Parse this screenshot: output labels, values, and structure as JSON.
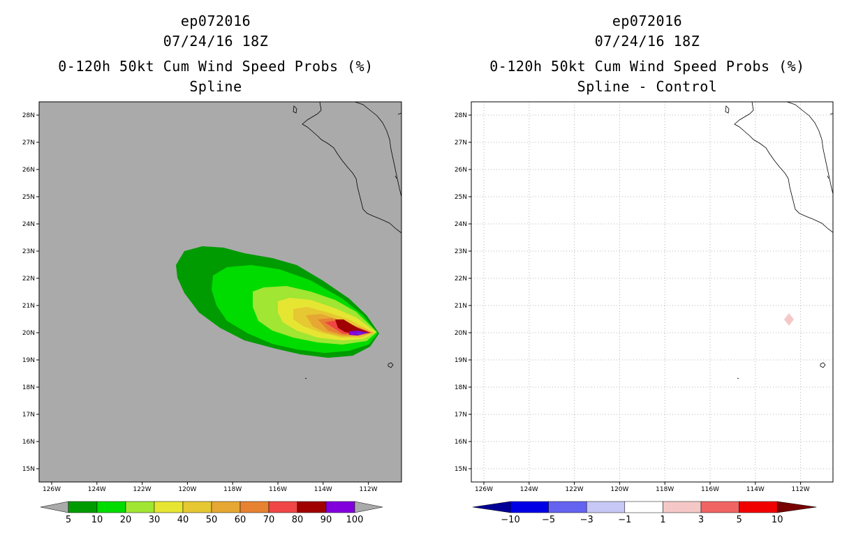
{
  "left": {
    "title_line1": "ep072016",
    "title_line2": "07/24/16 18Z",
    "title_line3": "0-120h 50kt Cum Wind Speed Probs (%)",
    "title_line4": "Spline",
    "colorbar_labels": [
      "5",
      "10",
      "20",
      "30",
      "40",
      "50",
      "60",
      "70",
      "80",
      "90",
      "100"
    ],
    "colorbar_colors": [
      "#009b00",
      "#00dc00",
      "#a0e632",
      "#e6e632",
      "#e6c832",
      "#e6a832",
      "#e68232",
      "#f04646",
      "#a00000",
      "#8200dc"
    ]
  },
  "right": {
    "title_line1": "ep072016",
    "title_line2": "07/24/16 18Z",
    "title_line3": "0-120h 50kt Cum Wind Speed Probs (%)",
    "title_line4": "Spline - Control",
    "colorbar_labels": [
      "−10",
      "−5",
      "−3",
      "−1",
      "1",
      "3",
      "5",
      "10"
    ],
    "colorbar_colors": [
      "#0000e6",
      "#6464f0",
      "#c8c8f5",
      "#ffffff",
      "#f5c8c8",
      "#f06464",
      "#f00000"
    ],
    "colorbar_low_color": "#000096",
    "colorbar_high_color": "#780000"
  },
  "axes": {
    "lon_labels": [
      "126W",
      "124W",
      "122W",
      "120W",
      "118W",
      "116W",
      "114W",
      "112W"
    ],
    "lat_labels": [
      "28N",
      "27N",
      "26N",
      "25N",
      "24N",
      "23N",
      "22N",
      "21N",
      "20N",
      "19N",
      "18N",
      "17N",
      "16N",
      "15N"
    ]
  },
  "colors": {
    "land_background": "#aaaaaa",
    "grid": "#b4b4b4"
  }
}
